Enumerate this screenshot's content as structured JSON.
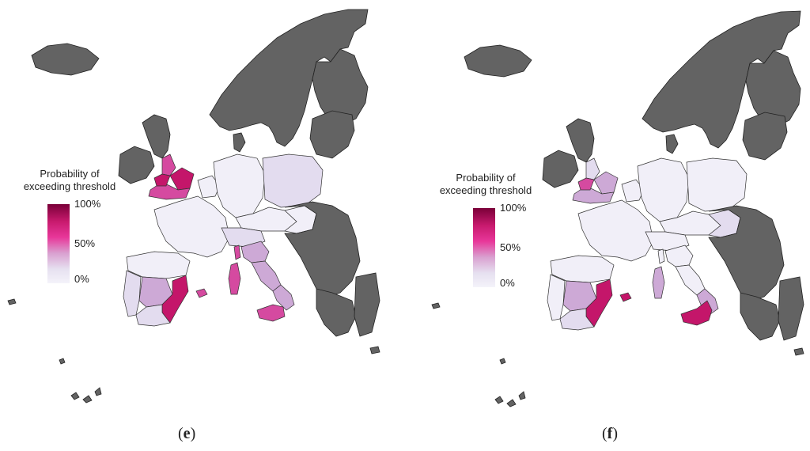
{
  "panels": [
    {
      "id": "e",
      "caption_letter": "e",
      "legend_title_line1": "Probability of",
      "legend_title_line2": "exceeding threshold",
      "legend_ticks": [
        "100%",
        "50%",
        "0%"
      ]
    },
    {
      "id": "f",
      "caption_letter": "f",
      "legend_title_line1": "Probability of",
      "legend_title_line2": "exceeding threshold",
      "legend_ticks": [
        "100%",
        "50%",
        "0%"
      ]
    }
  ],
  "colors": {
    "no_data": "#636363",
    "p0": "#f1eff8",
    "p_low": "#e3dcef",
    "p_mid": "#cda9d6",
    "p_high": "#d54aa0",
    "p_very_high": "#c4166a",
    "p_max": "#7a0038"
  },
  "legend_scale": {
    "min": 0,
    "max": 100,
    "unit": "%"
  }
}
